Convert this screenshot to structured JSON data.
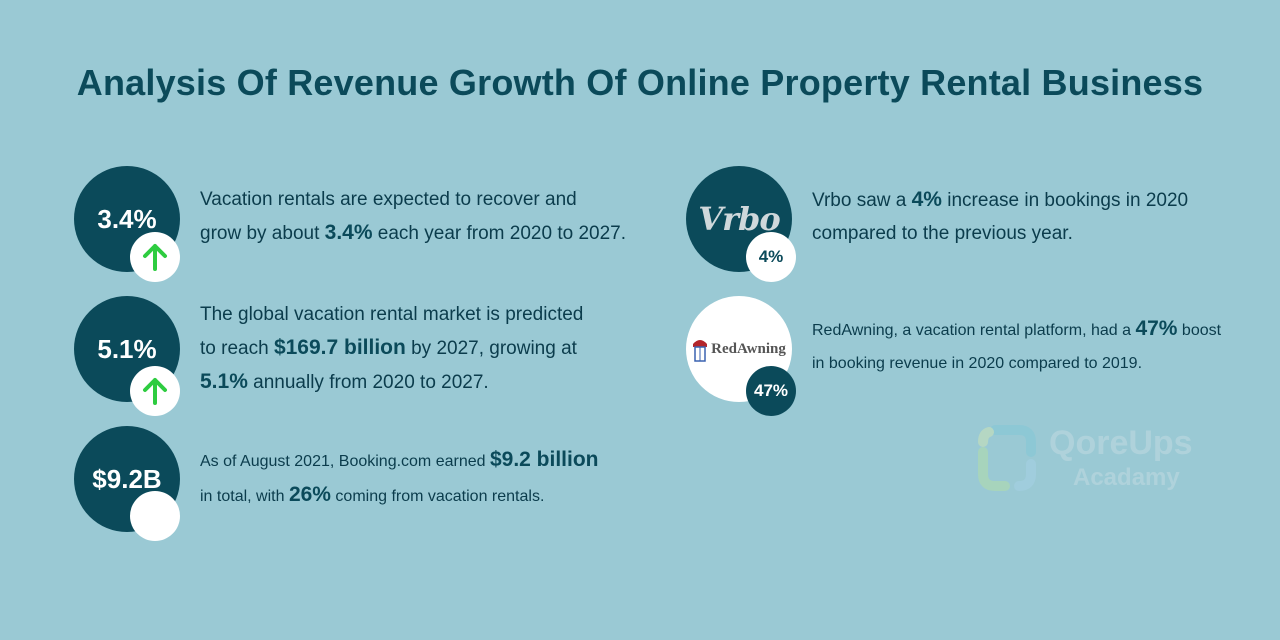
{
  "title": "Analysis Of Revenue Growth Of Online Property Rental Business",
  "left_items": [
    {
      "circle_label": "3.4%",
      "badge": "up-arrow-icon",
      "line1": "Vacation rentals are expected to recover and",
      "line2_pre": "grow by about ",
      "line2_bold": "3.4%",
      "line2_post": " each year from 2020 to 2027."
    },
    {
      "circle_label": "5.1%",
      "badge": "up-arrow-icon",
      "line1": "The global vacation rental market is predicted",
      "line2_pre": "to reach ",
      "line2_bold": "$169.7 billion",
      "line2_post": " by 2027, growing at",
      "line3_bold": "5.1%",
      "line3_post": " annually from 2020 to 2027."
    },
    {
      "circle_label": "$9.2B",
      "line1_pre": "As of August 2021, Booking.com earned ",
      "line1_bold": "$9.2 billion",
      "line2_pre": "in total, with ",
      "line2_bold": "26%",
      "line2_post": " coming from vacation rentals."
    }
  ],
  "right_items": [
    {
      "logo_text": "Vrbo",
      "badge_label": "4%",
      "line1_pre": "Vrbo saw a ",
      "line1_bold": "4%",
      "line1_post": " increase in bookings in 2020",
      "line2": "compared to the previous year."
    },
    {
      "logo_text": "RedAwning",
      "badge_label": "47%",
      "line1_pre": "RedAwning, a vacation rental platform, had a ",
      "line1_bold": "47%",
      "line1_post": " boost",
      "line2": "in booking revenue in 2020 compared to 2019."
    }
  ],
  "watermark": {
    "line1": "QoreUps",
    "line2": "Acadamy"
  },
  "colors": {
    "background": "#9ac9d4",
    "dark_teal": "#0b4a5a",
    "arrow_green": "#2ecc40"
  }
}
